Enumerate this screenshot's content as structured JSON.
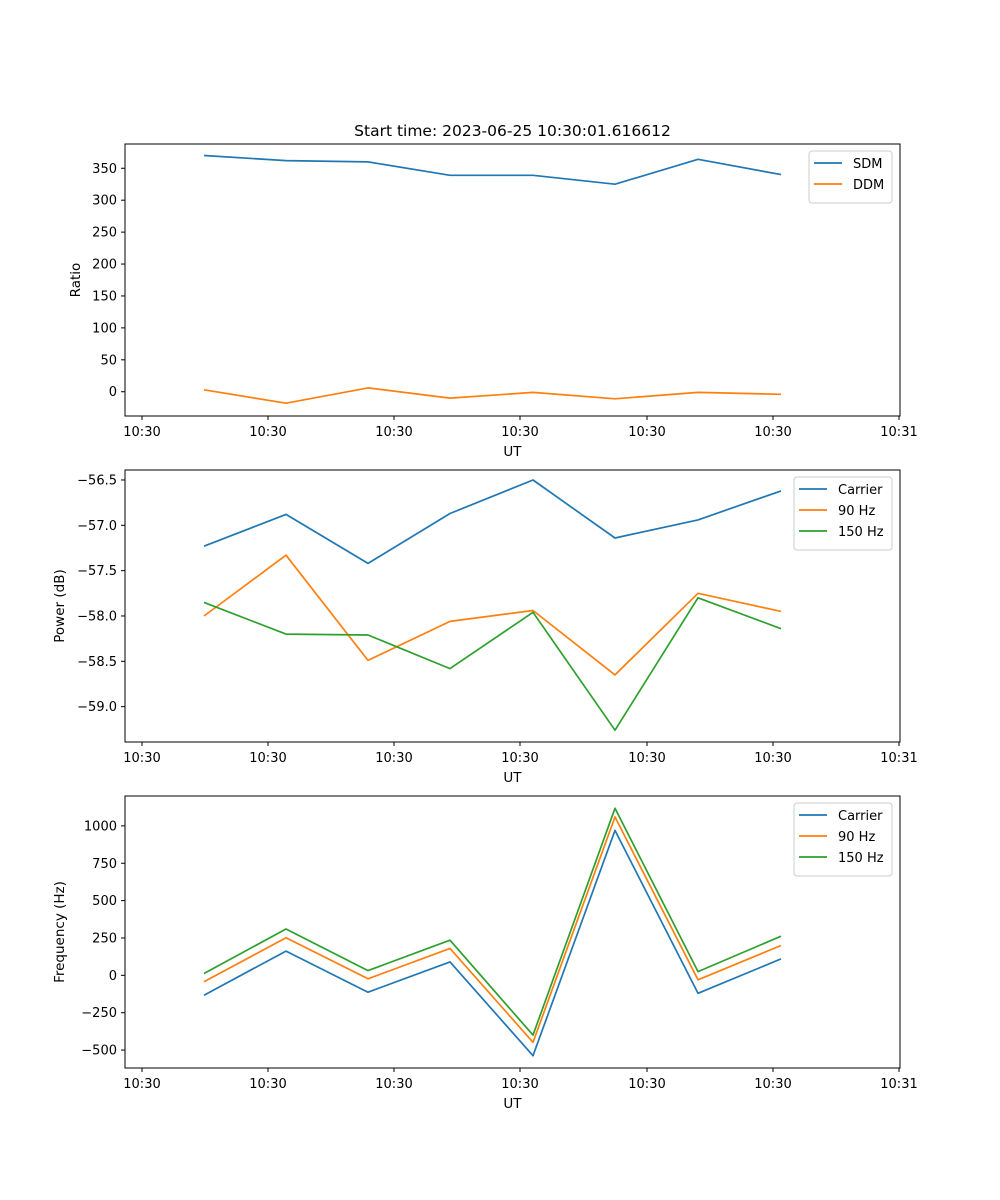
{
  "figure": {
    "title": "Start time: 2023-06-25 10:30:01.616612"
  },
  "chart_data": [
    {
      "type": "line",
      "xlabel": "UT",
      "ylabel": "Ratio",
      "x_ticks": [
        "10:30",
        "10:30",
        "10:30",
        "10:30",
        "10:30",
        "10:30",
        "10:31"
      ],
      "x_index": [
        0,
        1,
        2,
        3,
        4,
        5,
        6,
        7
      ],
      "ylim": [
        -38,
        388
      ],
      "y_ticks": [
        0,
        50,
        100,
        150,
        200,
        250,
        300,
        350
      ],
      "grid": false,
      "legend": "top-right",
      "series": [
        {
          "name": "SDM",
          "color": "#1f77b4",
          "values": [
            370,
            362,
            360,
            339,
            339,
            325,
            364,
            340
          ]
        },
        {
          "name": "DDM",
          "color": "#ff7f0e",
          "values": [
            3,
            -18,
            6,
            -10,
            -1,
            -11,
            -1,
            -4
          ]
        }
      ]
    },
    {
      "type": "line",
      "xlabel": "UT",
      "ylabel": "Power (dB)",
      "x_ticks": [
        "10:30",
        "10:30",
        "10:30",
        "10:30",
        "10:30",
        "10:30",
        "10:31"
      ],
      "x_index": [
        0,
        1,
        2,
        3,
        4,
        5,
        6,
        7
      ],
      "ylim": [
        -59.39,
        -56.39
      ],
      "y_ticks": [
        -59.0,
        -58.5,
        -58.0,
        -57.5,
        -57.0,
        -56.5
      ],
      "grid": false,
      "legend": "top-right",
      "series": [
        {
          "name": "Carrier",
          "color": "#1f77b4",
          "values": [
            -57.23,
            -56.88,
            -57.42,
            -56.87,
            -56.5,
            -57.14,
            -56.94,
            -56.62
          ]
        },
        {
          "name": "90 Hz",
          "color": "#ff7f0e",
          "values": [
            -58.0,
            -57.33,
            -58.49,
            -58.06,
            -57.94,
            -58.65,
            -57.75,
            -57.95
          ]
        },
        {
          "name": "150 Hz",
          "color": "#2ca02c",
          "values": [
            -57.85,
            -58.2,
            -58.21,
            -58.58,
            -57.96,
            -59.26,
            -57.8,
            -58.14
          ]
        }
      ]
    },
    {
      "type": "line",
      "xlabel": "UT",
      "ylabel": "Frequency (Hz)",
      "x_ticks": [
        "10:30",
        "10:30",
        "10:30",
        "10:30",
        "10:30",
        "10:30",
        "10:31"
      ],
      "x_index": [
        0,
        1,
        2,
        3,
        4,
        5,
        6,
        7
      ],
      "ylim": [
        -620,
        1200
      ],
      "y_ticks": [
        -500,
        -250,
        0,
        250,
        500,
        750,
        1000
      ],
      "grid": false,
      "legend": "top-right",
      "series": [
        {
          "name": "Carrier",
          "color": "#1f77b4",
          "values": [
            -133,
            162,
            -113,
            90,
            -538,
            970,
            -120,
            110
          ]
        },
        {
          "name": "90 Hz",
          "color": "#ff7f0e",
          "values": [
            -43,
            252,
            -23,
            180,
            -448,
            1060,
            -30,
            200
          ]
        },
        {
          "name": "150 Hz",
          "color": "#2ca02c",
          "values": [
            12,
            310,
            32,
            235,
            -400,
            1118,
            25,
            262
          ]
        }
      ]
    }
  ]
}
